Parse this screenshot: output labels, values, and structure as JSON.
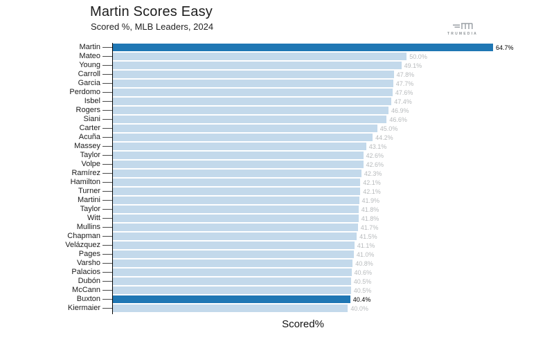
{
  "header": {
    "title": "Martin Scores Easy",
    "subtitle": "Scored %, MLB Leaders, 2024"
  },
  "logo": {
    "brand": "TRUMEDIA",
    "icon": "trumedia-logo-icon",
    "color": "#9aa0a5"
  },
  "chart_data": {
    "type": "bar",
    "orientation": "horizontal",
    "title": "Martin Scores Easy",
    "subtitle": "Scored %, MLB Leaders, 2024",
    "xlabel": "Scored%",
    "xlim": [
      0,
      64.7
    ],
    "value_unit": "%",
    "grid": false,
    "legend": false,
    "bar_color": "#c3d9eb",
    "highlight_color": "#1f77b4",
    "value_label_color": "#b7babc",
    "highlight_label_color": "#000000",
    "players": [
      {
        "name": "Martin",
        "value": 64.7,
        "label": "64.7%",
        "highlight": true
      },
      {
        "name": "Mateo",
        "value": 50.0,
        "label": "50.0%",
        "highlight": false
      },
      {
        "name": "Young",
        "value": 49.1,
        "label": "49.1%",
        "highlight": false
      },
      {
        "name": "Carroll",
        "value": 47.8,
        "label": "47.8%",
        "highlight": false
      },
      {
        "name": "Garcia",
        "value": 47.7,
        "label": "47.7%",
        "highlight": false
      },
      {
        "name": "Perdomo",
        "value": 47.6,
        "label": "47.6%",
        "highlight": false
      },
      {
        "name": "Isbel",
        "value": 47.4,
        "label": "47.4%",
        "highlight": false
      },
      {
        "name": "Rogers",
        "value": 46.9,
        "label": "46.9%",
        "highlight": false
      },
      {
        "name": "Siani",
        "value": 46.6,
        "label": "46.6%",
        "highlight": false
      },
      {
        "name": "Carter",
        "value": 45.0,
        "label": "45.0%",
        "highlight": false
      },
      {
        "name": "Acuña",
        "value": 44.2,
        "label": "44.2%",
        "highlight": false
      },
      {
        "name": "Massey",
        "value": 43.1,
        "label": "43.1%",
        "highlight": false
      },
      {
        "name": "Taylor",
        "value": 42.6,
        "label": "42.6%",
        "highlight": false
      },
      {
        "name": "Volpe",
        "value": 42.6,
        "label": "42.6%",
        "highlight": false
      },
      {
        "name": "Ramírez",
        "value": 42.3,
        "label": "42.3%",
        "highlight": false
      },
      {
        "name": "Hamilton",
        "value": 42.1,
        "label": "42.1%",
        "highlight": false
      },
      {
        "name": "Turner",
        "value": 42.1,
        "label": "42.1%",
        "highlight": false
      },
      {
        "name": "Martini",
        "value": 41.9,
        "label": "41.9%",
        "highlight": false
      },
      {
        "name": "Taylor",
        "value": 41.8,
        "label": "41.8%",
        "highlight": false
      },
      {
        "name": "Witt",
        "value": 41.8,
        "label": "41.8%",
        "highlight": false
      },
      {
        "name": "Mullins",
        "value": 41.7,
        "label": "41.7%",
        "highlight": false
      },
      {
        "name": "Chapman",
        "value": 41.5,
        "label": "41.5%",
        "highlight": false
      },
      {
        "name": "Velázquez",
        "value": 41.1,
        "label": "41.1%",
        "highlight": false
      },
      {
        "name": "Pages",
        "value": 41.0,
        "label": "41.0%",
        "highlight": false
      },
      {
        "name": "Varsho",
        "value": 40.8,
        "label": "40.8%",
        "highlight": false
      },
      {
        "name": "Palacios",
        "value": 40.6,
        "label": "40.6%",
        "highlight": false
      },
      {
        "name": "Dubón",
        "value": 40.5,
        "label": "40.5%",
        "highlight": false
      },
      {
        "name": "McCann",
        "value": 40.5,
        "label": "40.5%",
        "highlight": false
      },
      {
        "name": "Buxton",
        "value": 40.4,
        "label": "40.4%",
        "highlight": true
      },
      {
        "name": "Kiermaier",
        "value": 40.0,
        "label": "40.0%",
        "highlight": false
      }
    ]
  }
}
